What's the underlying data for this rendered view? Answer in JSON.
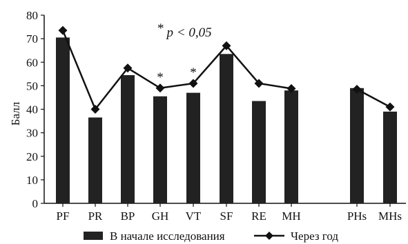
{
  "chart_data": {
    "type": "bar+line",
    "title": "",
    "xlabel": "",
    "ylabel": "Балл",
    "ylim": [
      0,
      80
    ],
    "yticks": [
      0,
      10,
      20,
      30,
      40,
      50,
      60,
      70,
      80
    ],
    "grid": false,
    "categories": [
      "PF",
      "PR",
      "BP",
      "GH",
      "VT",
      "SF",
      "RE",
      "MH",
      "PHs",
      "MHs"
    ],
    "series": [
      {
        "name": "В начале исследования",
        "type": "bar",
        "color": "#222222",
        "values": [
          70.5,
          36.5,
          54.5,
          45.5,
          47.0,
          63.5,
          43.5,
          48.0,
          49.0,
          39.0
        ]
      },
      {
        "name": "Через год",
        "type": "line",
        "marker": "diamond",
        "color": "#111111",
        "values": [
          73.5,
          40.0,
          57.5,
          49.0,
          51.0,
          67.0,
          51.0,
          48.8,
          48.5,
          41.0
        ]
      }
    ],
    "significant": [
      "GH",
      "VT"
    ],
    "annotation": {
      "star": "*",
      "text": "p < 0,05"
    },
    "legend_position": "bottom"
  }
}
